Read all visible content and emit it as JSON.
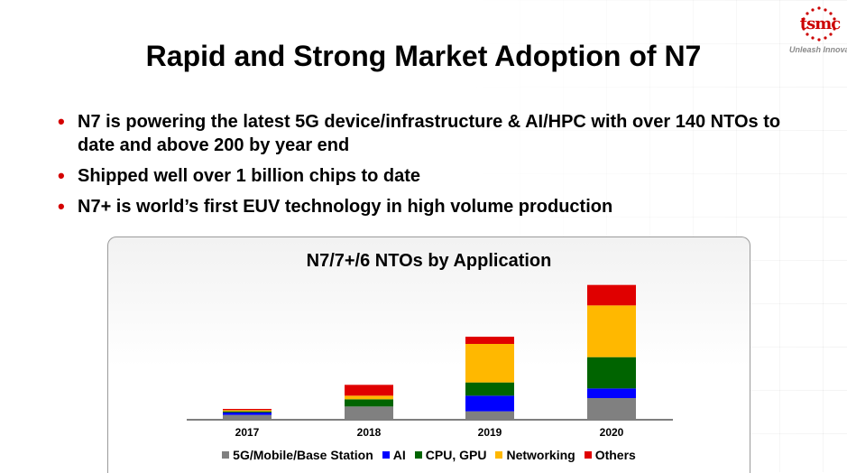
{
  "header": {
    "logo_text": "tsmc",
    "tagline": "Unleash Innovat",
    "title": "Rapid and Strong Market Adoption of N7"
  },
  "bullets": [
    "N7 is powering the latest 5G device/infrastructure & AI/HPC with over 140 NTOs to date and above 200 by year end",
    "Shipped well over 1 billion chips to date",
    "N7+ is world’s first EUV technology in high volume production"
  ],
  "colors": {
    "bullet": "#d40000",
    "accent": "#cc0000"
  },
  "chart_data": {
    "type": "bar",
    "stacked": true,
    "title": "N7/7+/6 NTOs by Application",
    "categories": [
      "2017",
      "2018",
      "2019",
      "2020"
    ],
    "series": [
      {
        "name": "5G/Mobile/Base Station",
        "color": "#808080",
        "values": [
          2,
          5.5,
          3.5,
          9
        ]
      },
      {
        "name": "AI",
        "color": "#0000ff",
        "values": [
          1,
          0,
          6.5,
          4
        ]
      },
      {
        "name": "CPU, GPU",
        "color": "#006400",
        "values": [
          0.5,
          3,
          5.5,
          13
        ]
      },
      {
        "name": "Networking",
        "color": "#ffb800",
        "values": [
          0.5,
          1.5,
          16,
          21.5
        ]
      },
      {
        "name": "Others",
        "color": "#e00000",
        "values": [
          0.5,
          4.5,
          3,
          8.5
        ]
      }
    ],
    "ylim": [
      0,
      60
    ],
    "grid": false,
    "legend": "bottom"
  }
}
